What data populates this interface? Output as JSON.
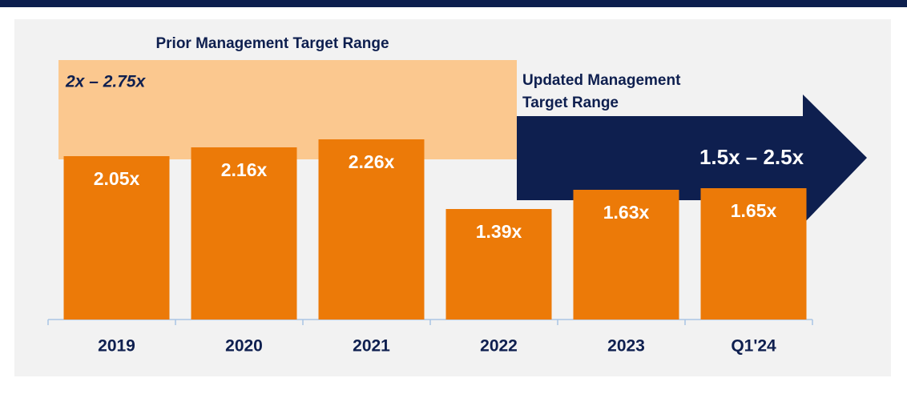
{
  "chart_data": {
    "type": "bar",
    "categories": [
      "2019",
      "2020",
      "2021",
      "2022",
      "2023",
      "Q1'24"
    ],
    "values": [
      2.05,
      2.16,
      2.26,
      1.39,
      1.63,
      1.65
    ],
    "value_labels": [
      "2.05x",
      "2.16x",
      "2.26x",
      "1.39x",
      "1.63x",
      "1.65x"
    ],
    "color": "#ec7a08",
    "ylim": [
      0,
      4
    ],
    "annotations": {
      "prior_title": "Prior Management Target Range",
      "prior_range": "2x – 2.75x",
      "updated_title": [
        "Updated Management",
        "Target Range"
      ],
      "updated_range": "1.5x – 2.5x"
    }
  }
}
